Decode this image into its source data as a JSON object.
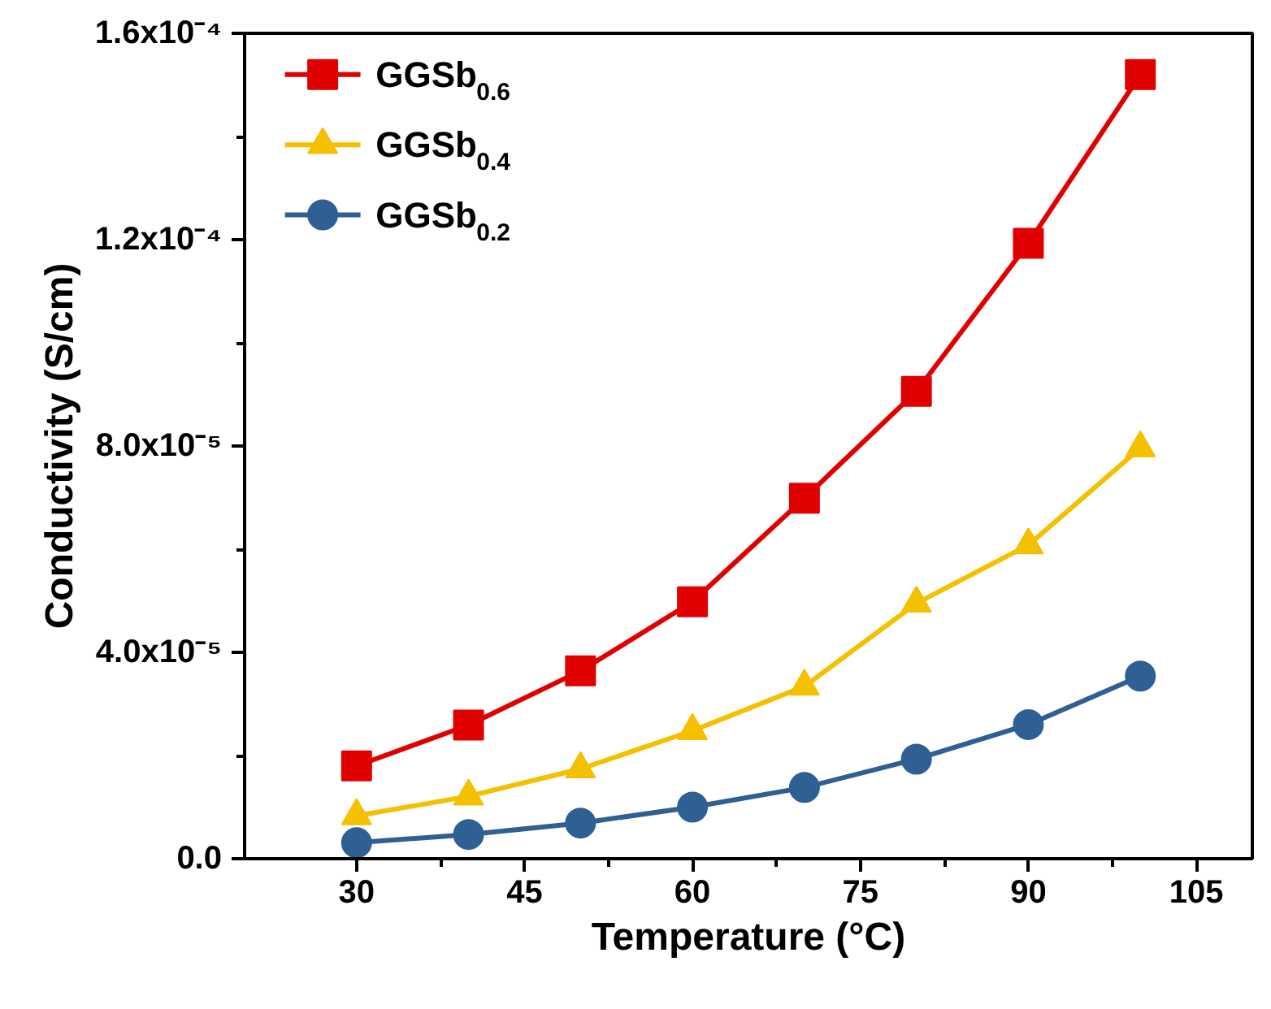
{
  "chart_data": {
    "type": "line",
    "xlabel": "Temperature (°C)",
    "ylabel": "Conductivity (S/cm)",
    "x": [
      30,
      40,
      50,
      60,
      70,
      80,
      90,
      100
    ],
    "series": [
      {
        "name": "GGSb$_{0.6}$",
        "color": "#e00000",
        "marker": "square",
        "values": [
          1.8e-05,
          2.59e-05,
          3.64e-05,
          4.98e-05,
          6.99e-05,
          9.06e-05,
          0.0001193,
          0.000152
        ]
      },
      {
        "name": "GGSb$_{0.4}$",
        "color": "#f5c000",
        "marker": "triangle",
        "values": [
          8.3e-06,
          1.21e-05,
          1.74e-05,
          2.48e-05,
          3.34e-05,
          4.95e-05,
          6.08e-05,
          7.96e-05
        ]
      },
      {
        "name": "GGSb$_{0.2}$",
        "color": "#2f5f93",
        "marker": "circle",
        "values": [
          3.1e-06,
          4.7e-06,
          6.9e-06,
          1e-05,
          1.38e-05,
          1.93e-05,
          2.6e-05,
          3.54e-05
        ]
      }
    ],
    "xlim": [
      20,
      110
    ],
    "xticks": [
      30,
      45,
      60,
      75,
      90,
      105
    ],
    "ylim": [
      0,
      0.00016
    ],
    "yticks": [
      {
        "value": 0,
        "label": "0.0"
      },
      {
        "value": 4e-05,
        "label": "4.0x10⁻⁵"
      },
      {
        "value": 8e-05,
        "label": "8.0x10⁻⁵"
      },
      {
        "value": 0.00012,
        "label": "1.2x10⁻⁴"
      },
      {
        "value": 0.00016,
        "label": "1.6x10⁻⁴"
      }
    ],
    "legend": "top left",
    "grid": false,
    "line_style": "solid"
  }
}
